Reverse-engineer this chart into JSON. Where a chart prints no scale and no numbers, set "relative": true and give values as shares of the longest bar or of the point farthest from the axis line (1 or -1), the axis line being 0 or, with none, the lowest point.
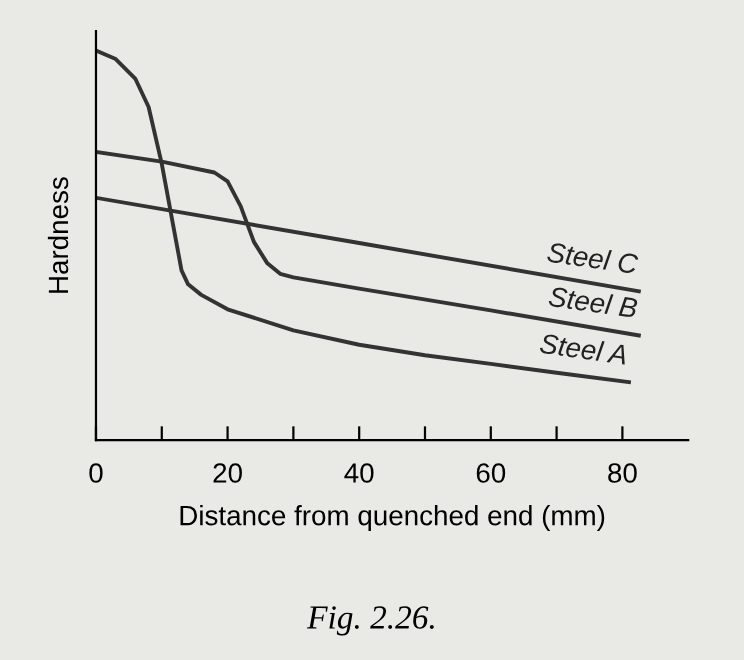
{
  "chart_data": {
    "type": "line",
    "relative": true,
    "xlabel": "Distance from quenched end (mm)",
    "ylabel": "Hardness",
    "xlim": [
      0,
      90
    ],
    "xticks": [
      0,
      {
        "value": 10,
        "label": null
      },
      20,
      {
        "value": 30,
        "label": null
      },
      40,
      {
        "value": 50,
        "label": null
      },
      60,
      {
        "value": 70,
        "label": null
      },
      80
    ],
    "grid": false,
    "legend": false,
    "marker": "none",
    "line_style": "solid",
    "annotations": [
      "Fig. 2.26."
    ],
    "series": [
      {
        "name": "Steel A",
        "color": "#333333",
        "x": [
          0,
          3,
          6,
          8,
          10,
          11,
          12,
          13,
          14,
          16,
          20,
          30,
          40,
          50,
          60,
          70,
          81
        ],
        "values": [
          1.0,
          0.978,
          0.927,
          0.855,
          0.709,
          0.618,
          0.527,
          0.436,
          0.4,
          0.373,
          0.336,
          0.282,
          0.245,
          0.218,
          0.196,
          0.173,
          0.149
        ]
      },
      {
        "name": "Steel B",
        "color": "#333333",
        "x": [
          0,
          10,
          18,
          20,
          22,
          24,
          26,
          28,
          30,
          40,
          60,
          82.5
        ],
        "values": [
          0.74,
          0.715,
          0.687,
          0.664,
          0.6,
          0.509,
          0.455,
          0.427,
          0.418,
          0.389,
          0.333,
          0.269
        ]
      },
      {
        "name": "Steel C",
        "color": "#333333",
        "x": [
          0,
          40,
          82.5
        ],
        "values": [
          0.622,
          0.506,
          0.382
        ]
      }
    ]
  }
}
